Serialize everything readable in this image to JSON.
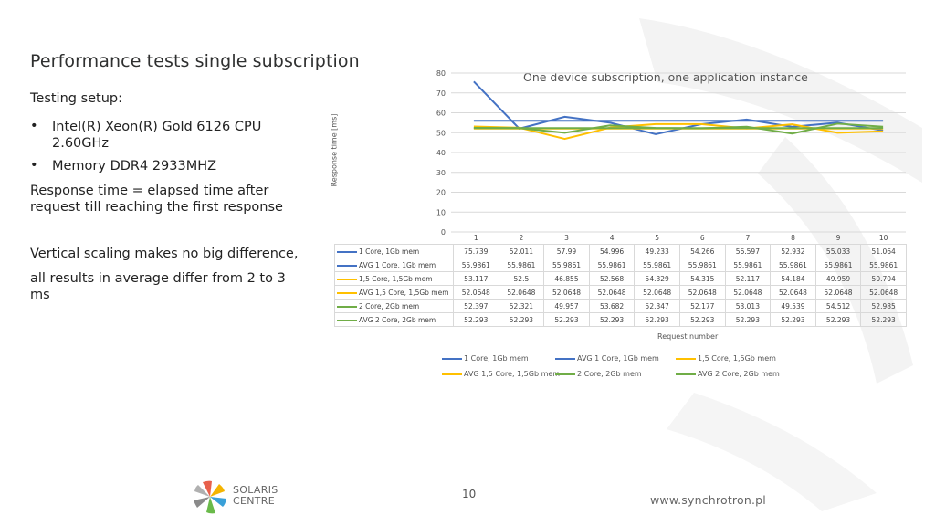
{
  "slide": {
    "title": "Performance tests single subscription",
    "setup_label": "Testing setup:",
    "bullets": [
      {
        "marker": "•",
        "text": "Intel(R) Xeon(R) Gold 6126 CPU 2.60GHz"
      },
      {
        "marker": "•",
        "text": "Memory DDR4 2933MHZ"
      }
    ],
    "response_def": "Response time = elapsed time after request till reaching the first response",
    "vertical_note": "Vertical scaling makes no big difference,",
    "avg_note": "all results in average differ from 2 to 3 ms",
    "page_number": "10",
    "logo_line1": "SOLARIS",
    "logo_line2": "CENTRE",
    "website": "www.synchrotron.pl"
  },
  "chart_data": {
    "type": "line",
    "title": "One device subscription, one application instance",
    "xlabel": "Request number",
    "ylabel": "Response time [ms]",
    "ylim": [
      0,
      80
    ],
    "yticks": [
      0,
      10,
      20,
      30,
      40,
      50,
      60,
      70,
      80
    ],
    "categories": [
      "1",
      "2",
      "3",
      "4",
      "5",
      "6",
      "7",
      "8",
      "9",
      "10"
    ],
    "grid": true,
    "legend_position": "bottom",
    "series": [
      {
        "name": "1 Core, 1Gb mem",
        "color": "#4472c4",
        "values": [
          "75.739",
          "52.011",
          "57.99",
          "54.996",
          "49.233",
          "54.266",
          "56.597",
          "52.932",
          "55.033",
          "51.064"
        ]
      },
      {
        "name": "AVG 1 Core, 1Gb mem",
        "color": "#4472c4",
        "values": [
          "55.9861",
          "55.9861",
          "55.9861",
          "55.9861",
          "55.9861",
          "55.9861",
          "55.9861",
          "55.9861",
          "55.9861",
          "55.9861"
        ]
      },
      {
        "name": "1,5 Core, 1,5Gb mem",
        "color": "#ffc000",
        "values": [
          "53.117",
          "52.5",
          "46.855",
          "52.568",
          "54.329",
          "54.315",
          "52.117",
          "54.184",
          "49.959",
          "50.704"
        ]
      },
      {
        "name": "AVG 1,5 Core, 1,5Gb mem",
        "color": "#ffc000",
        "values": [
          "52.0648",
          "52.0648",
          "52.0648",
          "52.0648",
          "52.0648",
          "52.0648",
          "52.0648",
          "52.0648",
          "52.0648",
          "52.0648"
        ]
      },
      {
        "name": "2 Core, 2Gb mem",
        "color": "#70ad47",
        "values": [
          "52.397",
          "52.321",
          "49.957",
          "53.682",
          "52.347",
          "52.177",
          "53.013",
          "49.539",
          "54.512",
          "52.985"
        ]
      },
      {
        "name": "AVG 2 Core, 2Gb mem",
        "color": "#70ad47",
        "values": [
          "52.293",
          "52.293",
          "52.293",
          "52.293",
          "52.293",
          "52.293",
          "52.293",
          "52.293",
          "52.293",
          "52.293"
        ]
      }
    ]
  }
}
